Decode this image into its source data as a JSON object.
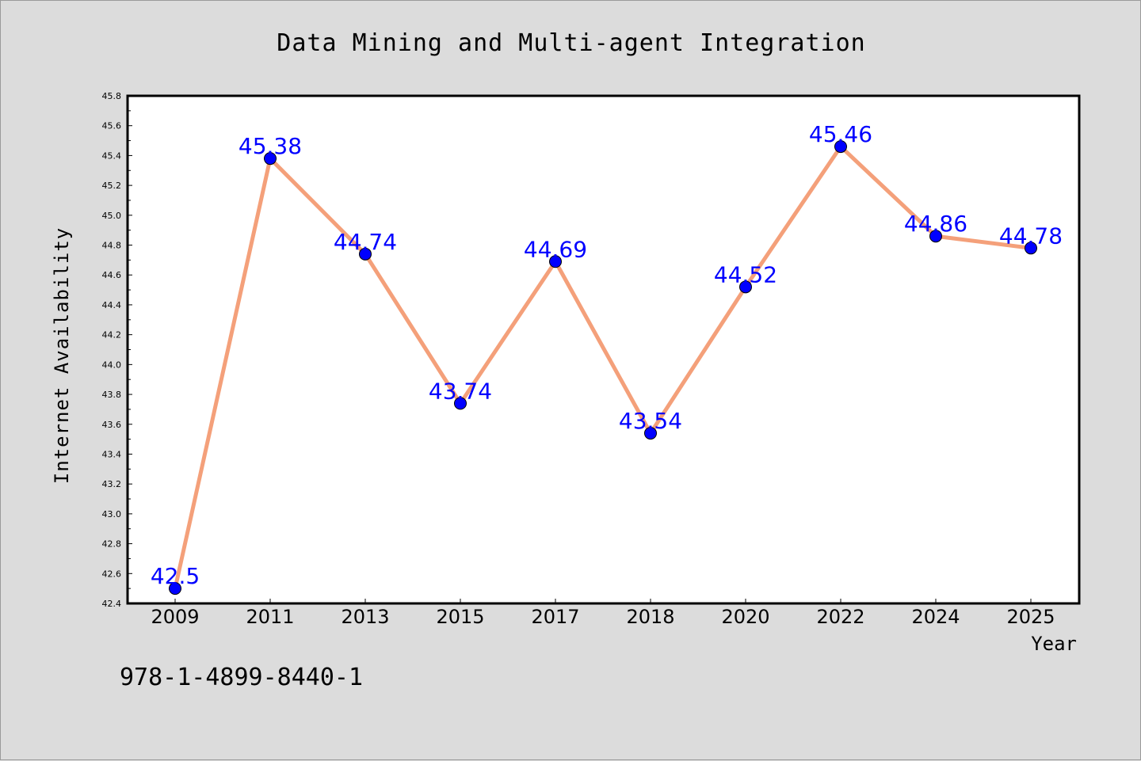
{
  "chart_data": {
    "type": "line",
    "title": "Data Mining and Multi-agent Integration",
    "xlabel": "Year",
    "ylabel": "Internet Availability",
    "categories": [
      "2009",
      "2011",
      "2013",
      "2015",
      "2017",
      "2018",
      "2020",
      "2022",
      "2024",
      "2025"
    ],
    "series": [
      {
        "values": [
          42.5,
          45.38,
          44.74,
          43.74,
          44.69,
          43.54,
          44.52,
          45.46,
          44.86,
          44.78
        ],
        "data_labels": [
          "42.5",
          "45.38",
          "44.74",
          "43.74",
          "44.69",
          "43.54",
          "44.52",
          "45.46",
          "44.86",
          "44.78"
        ],
        "line_color": "#f4a07a",
        "marker_color": "#0000ff"
      }
    ],
    "ylim": [
      42.4,
      45.8
    ],
    "yticks": [
      "42.4",
      "42.6",
      "42.8",
      "43.0",
      "43.2",
      "43.4",
      "43.6",
      "43.8",
      "44.0",
      "44.2",
      "44.4",
      "44.6",
      "44.8",
      "45.0",
      "45.2",
      "45.4",
      "45.6",
      "45.8"
    ],
    "grid": false,
    "legend": "none",
    "label_color": "#0000ff"
  },
  "footer": {
    "isbn": "978-1-4899-8440-1"
  },
  "colors": {
    "background": "#dcdcdc",
    "plot_area": "#ffffff",
    "axis": "#000000"
  }
}
